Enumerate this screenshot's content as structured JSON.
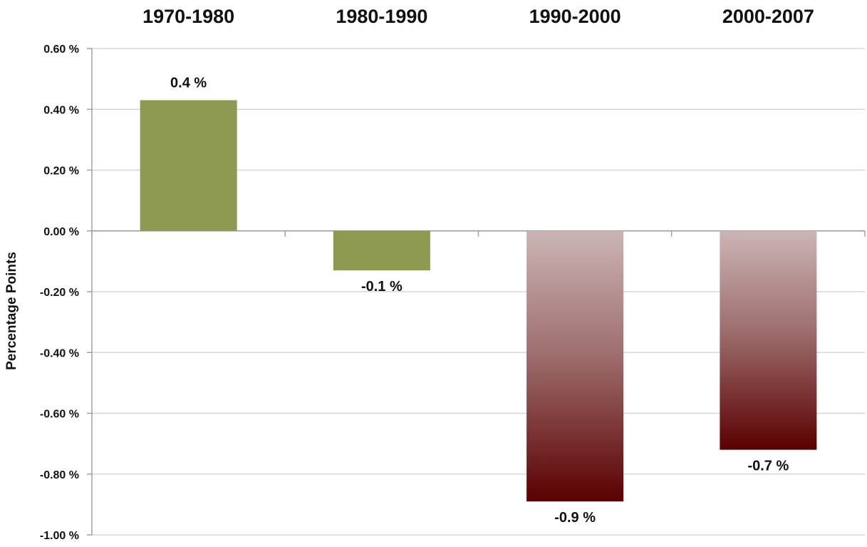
{
  "chart_data": {
    "type": "bar",
    "categories": [
      "1970-1980",
      "1980-1990",
      "1990-2000",
      "2000-2007"
    ],
    "values": [
      0.43,
      -0.13,
      -0.89,
      -0.72
    ],
    "data_labels": [
      "0.4 %",
      "-0.1 %",
      "-0.9 %",
      "-0.7 %"
    ],
    "ylabel": "Percentage Points",
    "ylim": [
      -1.0,
      0.6
    ],
    "yticks": [
      0.6,
      0.4,
      0.2,
      0.0,
      -0.2,
      -0.4,
      -0.6,
      -0.8,
      -1.0
    ],
    "ytick_labels": [
      "0.60 %",
      "0.40 %",
      "0.20 %",
      "0.00 %",
      "-0.20 %",
      "-0.40 %",
      "-0.60 %",
      "-0.80 %",
      "-1.00 %"
    ],
    "category_position": "top",
    "grid": true,
    "colors": {
      "positive_early": "#8e9a52",
      "gradient_top": "#cbb5b5",
      "gradient_bottom": "#5a0000"
    }
  }
}
